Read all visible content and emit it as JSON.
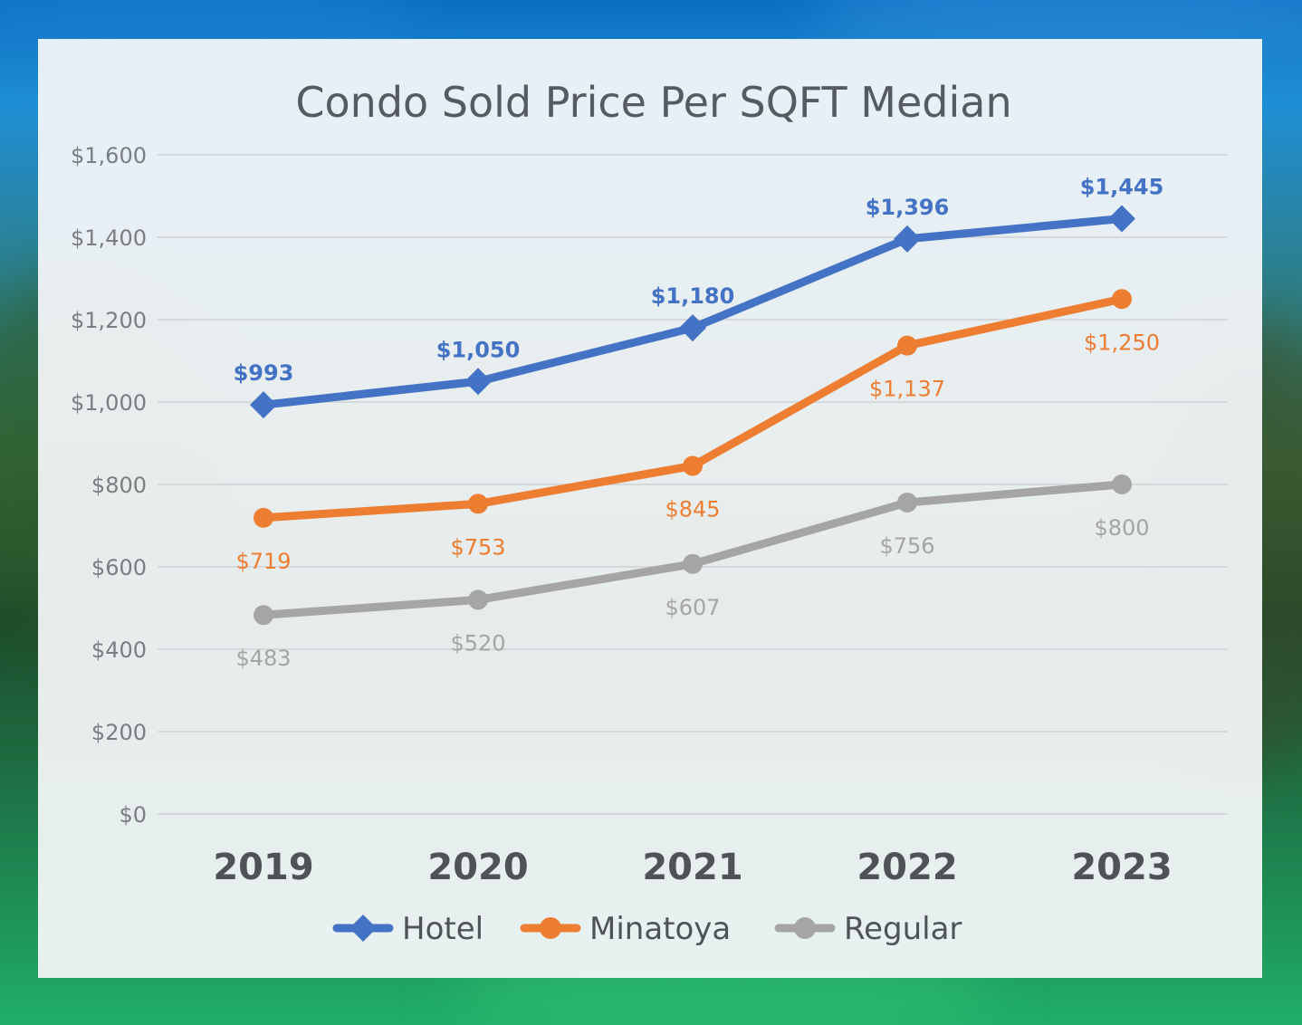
{
  "chart_data": {
    "type": "line",
    "title": "Condo Sold Price Per SQFT Median",
    "categories": [
      "2019",
      "2020",
      "2021",
      "2022",
      "2023"
    ],
    "ylim": [
      0,
      1600
    ],
    "y_ticks": [
      0,
      200,
      400,
      600,
      800,
      1000,
      1200,
      1400,
      1600
    ],
    "y_tick_labels": [
      "$0",
      "$200",
      "$400",
      "$600",
      "$800",
      "$1,000",
      "$1,200",
      "$1,400",
      "$1,600"
    ],
    "grid": true,
    "legend_position": "bottom",
    "series": [
      {
        "name": "Hotel",
        "values": [
          993,
          1050,
          1180,
          1396,
          1445
        ],
        "labels": [
          "$993",
          "$1,050",
          "$1,180",
          "$1,396",
          "$1,445"
        ],
        "color": "#4472c4",
        "marker": "diamond",
        "label_position": "above"
      },
      {
        "name": "Minatoya",
        "values": [
          719,
          753,
          845,
          1137,
          1250
        ],
        "labels": [
          "$719",
          "$753",
          "$845",
          "$1,137",
          "$1,250"
        ],
        "color": "#ed7d31",
        "marker": "circle",
        "label_position": "below"
      },
      {
        "name": "Regular",
        "values": [
          483,
          520,
          607,
          756,
          800
        ],
        "labels": [
          "$483",
          "$520",
          "$607",
          "$756",
          "$800"
        ],
        "color": "#a5a5a5",
        "marker": "circle",
        "label_position": "below"
      }
    ]
  }
}
